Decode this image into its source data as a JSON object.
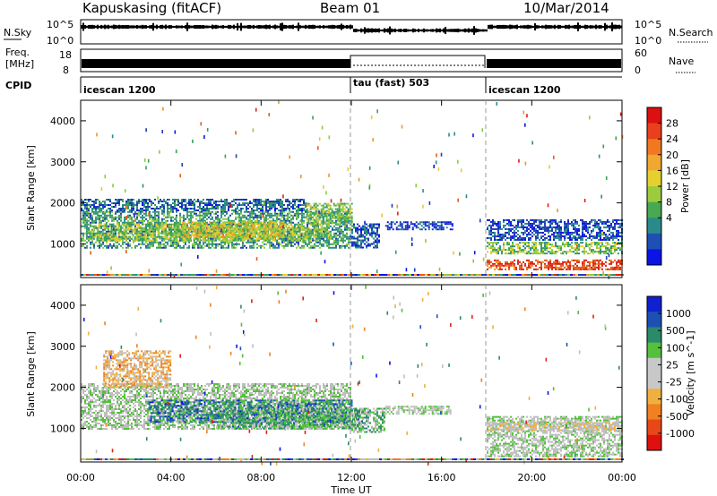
{
  "header": {
    "station": "Kapuskasing (fitACF)",
    "beam": "Beam 01",
    "date": "10/Mar/2014"
  },
  "noise_panel": {
    "left_label": "N.Sky",
    "left_ticks": [
      "10^5",
      "10^0"
    ],
    "right_label": "N.Search",
    "right_ticks": [
      "10^5",
      "10^0"
    ]
  },
  "freq_panel": {
    "left_label_line1": "Freq.",
    "left_label_line2": "[MHz]",
    "left_ticks": [
      "18",
      "8"
    ],
    "right_label": "Nave",
    "right_ticks": [
      "60",
      "0"
    ]
  },
  "cpid_panel": {
    "label": "CPID",
    "segments": [
      {
        "name": "icescan 1200",
        "start_hour": 0,
        "end_hour": 12
      },
      {
        "name": "tau (fast) 503",
        "start_hour": 12,
        "end_hour": 18
      },
      {
        "name": "icescan 1200",
        "start_hour": 18,
        "end_hour": 24
      }
    ]
  },
  "time_axis": {
    "label": "Time UT",
    "ticks": [
      "00:00",
      "04:00",
      "08:00",
      "12:00",
      "16:00",
      "20:00",
      "00:00"
    ]
  },
  "chart_data": [
    {
      "type": "heatmap",
      "name": "power",
      "ylabel": "Slant Range [km]",
      "xlim": [
        0,
        24
      ],
      "ylim": [
        180,
        4500
      ],
      "yticks": [
        1000,
        2000,
        3000,
        4000
      ],
      "colorbar_label": "Power [dB]",
      "colorbar_ticks": [
        "28",
        "24",
        "20",
        "16",
        "12",
        "8",
        "4"
      ],
      "colors": [
        "#0a14e6",
        "#1e3cb4",
        "#2a8a8a",
        "#3aa05a",
        "#8ccc3c",
        "#e6cc30",
        "#f09428",
        "#e65a18",
        "#dc2010"
      ],
      "regions": [
        {
          "t0": 0.0,
          "t1": 12.0,
          "r0": 900,
          "r1": 1800,
          "level": 0.32
        },
        {
          "t0": 0.3,
          "t1": 11.0,
          "r0": 1100,
          "r1": 1500,
          "level": 0.5
        },
        {
          "t0": 4.5,
          "t1": 9.0,
          "r0": 1200,
          "r1": 1550,
          "level": 0.62
        },
        {
          "t0": 0.0,
          "t1": 10.0,
          "r0": 1800,
          "r1": 2100,
          "level": 0.2
        },
        {
          "t0": 10.0,
          "t1": 12.0,
          "r0": 1500,
          "r1": 2000,
          "level": 0.45
        },
        {
          "t0": 12.0,
          "t1": 13.2,
          "r0": 900,
          "r1": 1500,
          "level": 0.15
        },
        {
          "t0": 13.5,
          "t1": 16.5,
          "r0": 1350,
          "r1": 1550,
          "level": 0.12
        },
        {
          "t0": 18.0,
          "t1": 24.0,
          "r0": 1100,
          "r1": 1600,
          "level": 0.12
        },
        {
          "t0": 18.0,
          "t1": 24.0,
          "r0": 750,
          "r1": 1050,
          "level": 0.45
        },
        {
          "t0": 18.0,
          "t1": 24.0,
          "r0": 380,
          "r1": 620,
          "level": 0.95
        }
      ]
    },
    {
      "type": "heatmap",
      "name": "velocity",
      "ylabel": "Slant Range [km]",
      "xlim": [
        0,
        24
      ],
      "ylim": [
        180,
        4500
      ],
      "yticks": [
        1000,
        2000,
        3000,
        4000
      ],
      "colorbar_label": "Velocity [m s^-1]",
      "colorbar_ticks": [
        "1000",
        "500",
        "100",
        "25",
        "-25",
        "-100",
        "-500",
        "-1000"
      ],
      "colors": [
        "#0a14e6",
        "#1e50b4",
        "#2a8a6a",
        "#54c03c",
        "#bebebe",
        "#bebebe",
        "#f0b040",
        "#f08020",
        "#e02010"
      ],
      "regions": [
        {
          "t0": 0.0,
          "t1": 12.0,
          "r0": 1000,
          "r1": 2100,
          "level": 0.5
        },
        {
          "t0": 3.0,
          "t1": 12.0,
          "r0": 1150,
          "r1": 1700,
          "level": 0.22
        },
        {
          "t0": 6.0,
          "t1": 12.5,
          "r0": 1000,
          "r1": 1500,
          "level": 0.35
        },
        {
          "t0": 1.0,
          "t1": 4.0,
          "r0": 2000,
          "r1": 2900,
          "level": 0.75
        },
        {
          "t0": 12.0,
          "t1": 13.5,
          "r0": 900,
          "r1": 1500,
          "level": 0.4
        },
        {
          "t0": 13.5,
          "t1": 16.5,
          "r0": 1350,
          "r1": 1550,
          "level": 0.5
        },
        {
          "t0": 18.0,
          "t1": 24.0,
          "r0": 300,
          "r1": 1300,
          "level": 0.5
        },
        {
          "t0": 18.0,
          "t1": 24.0,
          "r0": 950,
          "r1": 1150,
          "level": 0.62
        }
      ]
    }
  ],
  "palettes": {
    "power_colorbar": [
      "#dc1010",
      "#e8401c",
      "#f07820",
      "#f0a830",
      "#e6d030",
      "#9ccc3c",
      "#4aa850",
      "#2a8a8a",
      "#1e50b4",
      "#0a14e6"
    ],
    "velocity_colorbar": [
      "#1020d0",
      "#1e50b4",
      "#2a8a6a",
      "#54c03c",
      "#c8c8c8",
      "#c8c8c8",
      "#f0b040",
      "#f08020",
      "#e84818",
      "#e01010"
    ]
  }
}
